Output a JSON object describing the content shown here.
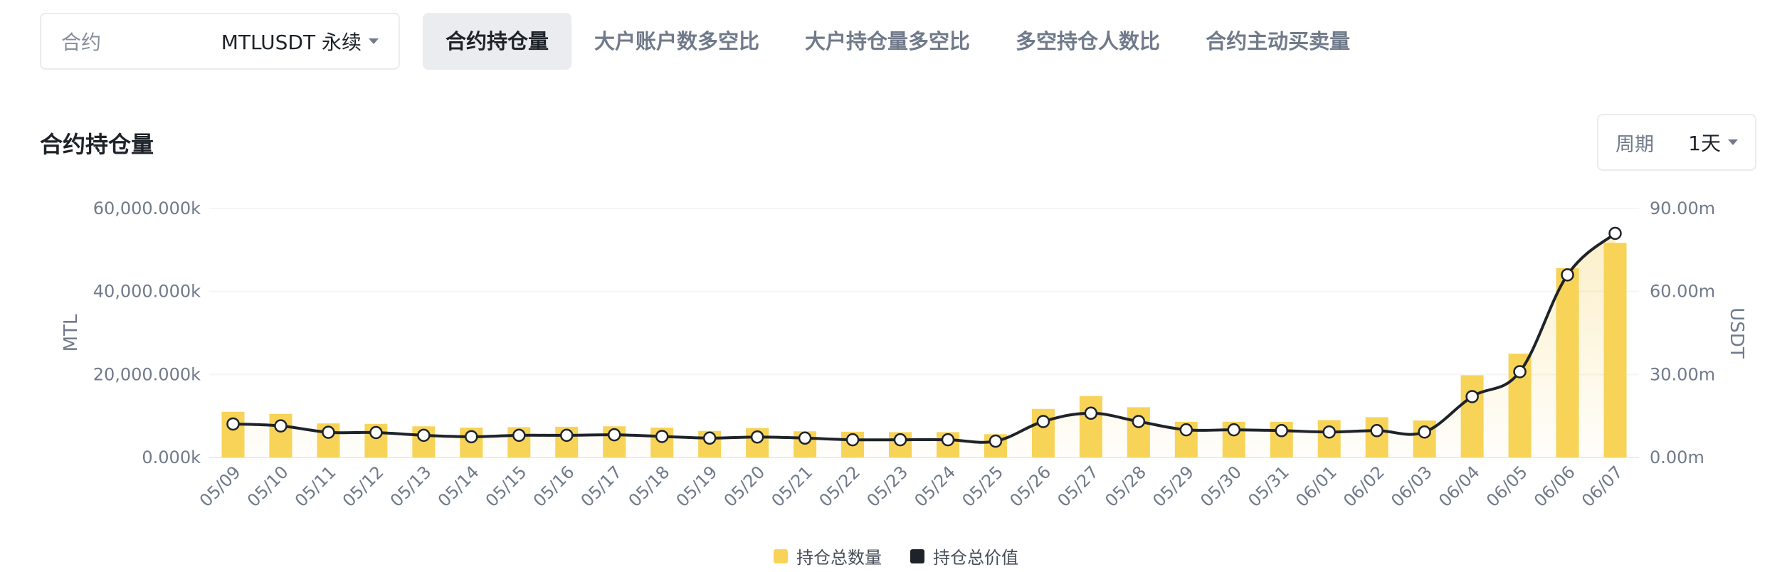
{
  "filter": {
    "contract_label": "合约",
    "contract_value": "MTLUSDT 永续"
  },
  "tabs": [
    {
      "label": "合约持仓量",
      "active": true
    },
    {
      "label": "大户账户数多空比",
      "active": false
    },
    {
      "label": "大户持仓量多空比",
      "active": false
    },
    {
      "label": "多空持仓人数比",
      "active": false
    },
    {
      "label": "合约主动买卖量",
      "active": false
    }
  ],
  "section": {
    "title": "合约持仓量"
  },
  "period": {
    "label": "周期",
    "value": "1天"
  },
  "colors": {
    "bar": "#f0b90b",
    "line": "#1e2329",
    "axis_text": "#707a8a",
    "grid": "#f0f1f2"
  },
  "chart_data": {
    "type": "bar+line",
    "categories": [
      "05/09",
      "05/10",
      "05/11",
      "05/12",
      "05/13",
      "05/14",
      "05/15",
      "05/16",
      "05/17",
      "05/18",
      "05/19",
      "05/20",
      "05/21",
      "05/22",
      "05/23",
      "05/24",
      "05/25",
      "05/26",
      "05/27",
      "05/28",
      "05/29",
      "05/30",
      "05/31",
      "06/01",
      "06/02",
      "06/03",
      "06/04",
      "06/05",
      "06/06",
      "06/07"
    ],
    "left_axis": {
      "label": "MTL",
      "ticks": [
        "0.000k",
        "20,000.000k",
        "40,000.000k",
        "60,000.000k"
      ],
      "range": [
        0,
        60000000
      ]
    },
    "right_axis": {
      "label": "USDT",
      "ticks": [
        "0.00m",
        "30.00m",
        "60.00m",
        "90.00m"
      ],
      "range": [
        0,
        90000000
      ]
    },
    "series": [
      {
        "name": "持仓总数量",
        "type": "bar",
        "axis": "left",
        "values": [
          11000000,
          10500000,
          8200000,
          8100000,
          7500000,
          7200000,
          7300000,
          7400000,
          7500000,
          7200000,
          6400000,
          7100000,
          6300000,
          6200000,
          6100000,
          6100000,
          5600000,
          11700000,
          14800000,
          12100000,
          8600000,
          8600000,
          8600000,
          9000000,
          9700000,
          8900000,
          19800000,
          25000000,
          45600000,
          51700000
        ]
      },
      {
        "name": "持仓总价值",
        "type": "line",
        "axis": "right",
        "values": [
          12100000,
          11400000,
          9100000,
          9000000,
          8000000,
          7500000,
          8000000,
          8000000,
          8200000,
          7600000,
          7000000,
          7400000,
          7000000,
          6400000,
          6400000,
          6400000,
          5900000,
          13000000,
          16000000,
          13000000,
          10000000,
          10000000,
          9700000,
          9200000,
          9700000,
          9200000,
          22000000,
          31000000,
          66000000,
          81000000
        ]
      }
    ],
    "grid": true,
    "legend_position": "bottom-center"
  }
}
